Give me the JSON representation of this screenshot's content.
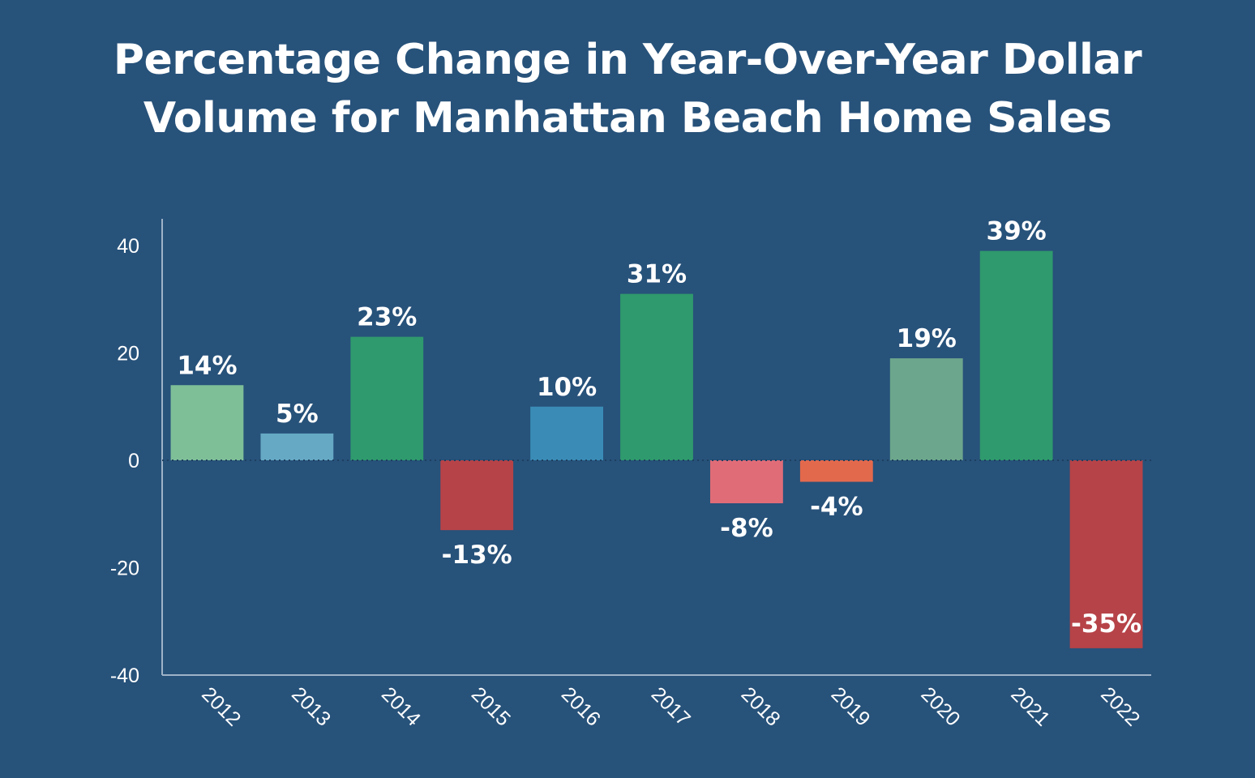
{
  "title_lines": [
    "Percentage Change in Year-Over-Year Dollar",
    "Volume for Manhattan Beach Home Sales"
  ],
  "chart_data": {
    "type": "bar",
    "title": "Percentage Change in Year-Over-Year Dollar Volume for Manhattan Beach Home Sales",
    "xlabel": "",
    "ylabel": "",
    "ylim": [
      -40,
      45
    ],
    "yticks": [
      40,
      20,
      0,
      -20,
      -40
    ],
    "grid": false,
    "categories": [
      "2012",
      "2013",
      "2014",
      "2015",
      "2016",
      "2017",
      "2018",
      "2019",
      "2020",
      "2021",
      "2022"
    ],
    "values": [
      14,
      5,
      23,
      -13,
      10,
      31,
      -8,
      -4,
      19,
      39,
      -35
    ],
    "data_labels": [
      "14%",
      "5%",
      "23%",
      "-13%",
      "10%",
      "31%",
      "-8%",
      "-4%",
      "19%",
      "39%",
      "-35%"
    ],
    "colors": [
      "#7fbf98",
      "#66a9c4",
      "#2f9a6d",
      "#b64348",
      "#3a8cb6",
      "#2f9a6d",
      "#e06c78",
      "#e3694d",
      "#6ca68c",
      "#2f9a6d",
      "#b64348"
    ]
  }
}
